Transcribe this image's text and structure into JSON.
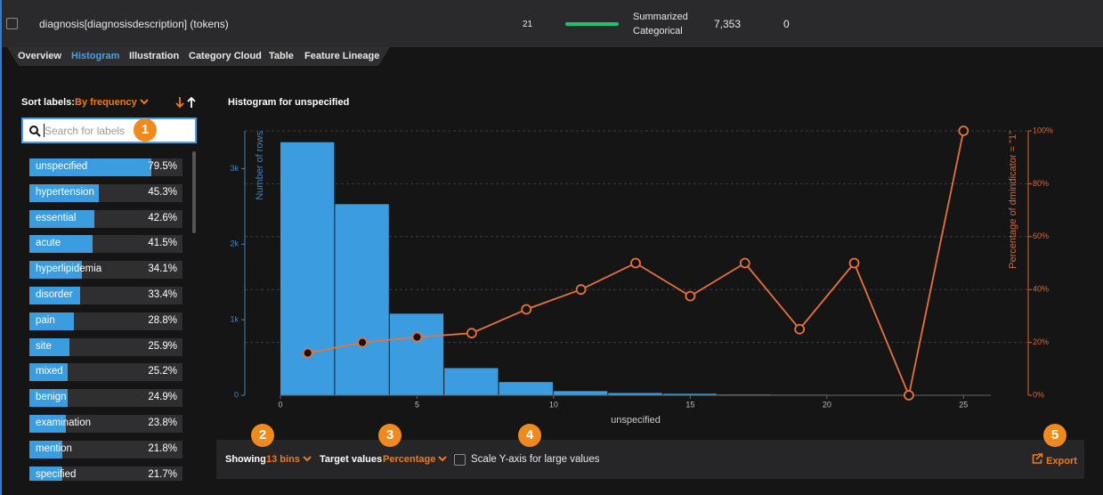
{
  "header_row": {
    "name": "diagnosis[diagnosisdescription] (tokens)",
    "count": "21",
    "type": "Summarized Categorical",
    "unique": "7,353",
    "missing": "0"
  },
  "tabs": [
    "Overview",
    "Histogram",
    "Illustration",
    "Category Cloud",
    "Table",
    "Feature Lineage"
  ],
  "active_tab": 1,
  "sidebar": {
    "sort_label": "Sort labels:",
    "sort_value": "By frequency",
    "search_placeholder": "Search for labels",
    "badge": "1",
    "items": [
      {
        "label": "unspecified",
        "value": 79.5,
        "value_label": "79.5%"
      },
      {
        "label": "hypertension",
        "value": 45.3,
        "value_label": "45.3%"
      },
      {
        "label": "essential",
        "value": 42.6,
        "value_label": "42.6%"
      },
      {
        "label": "acute",
        "value": 41.5,
        "value_label": "41.5%"
      },
      {
        "label": "hyperlipidemia",
        "value": 34.1,
        "value_label": "34.1%"
      },
      {
        "label": "disorder",
        "value": 33.4,
        "value_label": "33.4%"
      },
      {
        "label": "pain",
        "value": 28.8,
        "value_label": "28.8%"
      },
      {
        "label": "site",
        "value": 25.9,
        "value_label": "25.9%"
      },
      {
        "label": "mixed",
        "value": 25.2,
        "value_label": "25.2%"
      },
      {
        "label": "benign",
        "value": 24.9,
        "value_label": "24.9%"
      },
      {
        "label": "examination",
        "value": 23.8,
        "value_label": "23.8%"
      },
      {
        "label": "mention",
        "value": 21.8,
        "value_label": "21.8%"
      },
      {
        "label": "specified",
        "value": 21.7,
        "value_label": "21.7%"
      }
    ]
  },
  "chart_data": {
    "type": "histogram",
    "title": "Histogram for unspecified",
    "x_label": "unspecified",
    "y_label": "Number of rows",
    "y2_label": "Percentage of dmindicator = \"1\"",
    "bins": [
      0,
      2,
      4,
      6,
      8,
      10,
      12,
      14,
      16,
      18,
      20,
      22,
      24,
      26
    ],
    "counts": [
      3350,
      2530,
      1080,
      360,
      175,
      55,
      30,
      20,
      10,
      8,
      6,
      5,
      5
    ],
    "color": "#3b9de0",
    "series": [
      {
        "axis": "y2",
        "color": "#e8733a",
        "x": [
          1,
          3,
          5,
          7,
          9,
          11,
          13,
          15,
          17,
          19,
          21,
          23,
          25
        ],
        "values": [
          16,
          20,
          22,
          23.5,
          32.5,
          40,
          50,
          37.5,
          50,
          25,
          50,
          0,
          100
        ]
      }
    ],
    "xlim": [
      0,
      26
    ],
    "xticks": [
      0,
      5,
      10,
      15,
      20,
      25
    ],
    "ylim": [
      0,
      3500
    ],
    "yticks": [
      0,
      {
        "value": 1000,
        "label": "1k"
      },
      {
        "value": 2000,
        "label": "2k"
      },
      {
        "value": 3000,
        "label": "3k"
      }
    ],
    "y2lim": [
      0,
      100
    ],
    "y2ticks": [
      {
        "value": 0,
        "label": "0%"
      },
      {
        "value": 20,
        "label": "20%"
      },
      {
        "value": 40,
        "label": "40%"
      },
      {
        "value": 60,
        "label": "60%"
      },
      {
        "value": 80,
        "label": "80%"
      },
      {
        "value": 100,
        "label": "100%"
      }
    ],
    "grid": true
  },
  "controls": {
    "badges": [
      "2",
      "3",
      "4",
      "5"
    ],
    "showing_label": "Showing",
    "bins_value": "13 bins",
    "target_label": "Target values",
    "target_value": "Percentage",
    "scale_label": "Scale Y-axis for large values",
    "export_label": "Export"
  }
}
